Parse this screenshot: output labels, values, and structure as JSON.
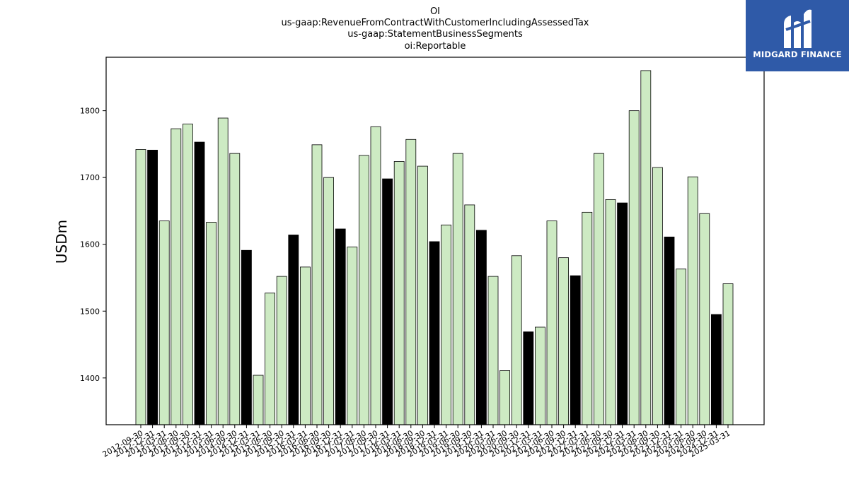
{
  "brand": {
    "name": "MIDGARD FINANCE",
    "mark_icon": "midgard-mark-icon",
    "color": "#2f5aa8"
  },
  "chart_data": {
    "type": "bar",
    "title_lines": [
      "OI",
      "us-gaap:RevenueFromContractWithCustomerIncludingAssessedTax",
      "us-gaap:StatementBusinessSegments",
      "oi:Reportable"
    ],
    "xlabel": "",
    "ylabel": "USDm",
    "ylim": [
      1330,
      1880
    ],
    "yticks": [
      1400,
      1500,
      1600,
      1700,
      1800
    ],
    "grid": false,
    "colors": {
      "quarter": "#cdeac3",
      "year_end": "#000000",
      "edge": "#000000"
    },
    "categories": [
      "2012-09-30",
      "2012-12-31",
      "2013-03-31",
      "2013-06-30",
      "2013-09-30",
      "2013-12-31",
      "2014-03-31",
      "2014-06-30",
      "2014-09-30",
      "2014-12-31",
      "2015-03-31",
      "2015-06-30",
      "2015-09-30",
      "2015-12-31",
      "2016-03-31",
      "2016-06-30",
      "2016-09-30",
      "2016-12-31",
      "2017-03-31",
      "2017-06-30",
      "2017-09-30",
      "2017-12-31",
      "2018-03-31",
      "2018-06-30",
      "2018-09-30",
      "2018-12-31",
      "2019-03-31",
      "2019-06-30",
      "2019-09-30",
      "2019-12-31",
      "2020-03-31",
      "2020-06-30",
      "2020-09-30",
      "2020-12-31",
      "2021-03-31",
      "2021-06-30",
      "2021-09-30",
      "2021-12-31",
      "2022-03-31",
      "2022-06-30",
      "2022-09-30",
      "2022-12-31",
      "2023-03-31",
      "2023-06-30",
      "2023-09-30",
      "2023-12-31",
      "2024-03-31",
      "2024-06-30",
      "2024-09-30",
      "2024-12-31",
      "2025-03-31"
    ],
    "values": [
      1742,
      1741,
      1635,
      1773,
      1780,
      1753,
      1633,
      1789,
      1736,
      1591,
      1404,
      1527,
      1552,
      1614,
      1566,
      1749,
      1700,
      1623,
      1596,
      1733,
      1776,
      1698,
      1724,
      1757,
      1717,
      1604,
      1629,
      1736,
      1659,
      1621,
      1552,
      1411,
      1583,
      1469,
      1476,
      1635,
      1580,
      1553,
      1648,
      1736,
      1667,
      1662,
      1800,
      1860,
      1715,
      1611,
      1563,
      1701,
      1646,
      1495,
      1541
    ],
    "year_end": [
      false,
      true,
      false,
      false,
      false,
      true,
      false,
      false,
      false,
      true,
      false,
      false,
      false,
      true,
      false,
      false,
      false,
      true,
      false,
      false,
      false,
      true,
      false,
      false,
      false,
      true,
      false,
      false,
      false,
      true,
      false,
      false,
      false,
      true,
      false,
      false,
      false,
      true,
      false,
      false,
      false,
      true,
      false,
      false,
      false,
      true,
      false,
      false,
      false,
      true,
      false
    ]
  }
}
